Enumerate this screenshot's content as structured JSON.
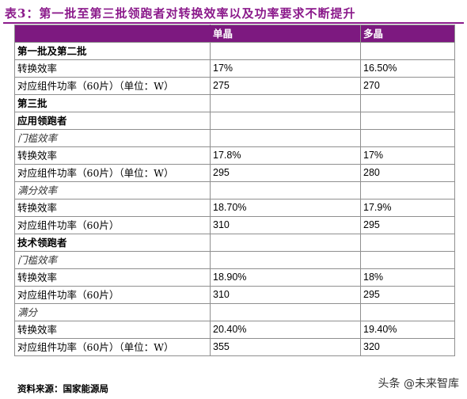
{
  "title": "表3：第一批至第三批领跑者对转换效率以及功率要求不断提升",
  "table": {
    "header": [
      "",
      "单晶",
      "多晶"
    ],
    "rows": [
      {
        "label": "第一批及第二批",
        "v1": "",
        "v2": "",
        "style": "bold"
      },
      {
        "label": "转换效率",
        "v1": "17%",
        "v2": "16.50%",
        "style": "normal"
      },
      {
        "label": "对应组件功率（60片）（单位：W）",
        "v1": "275",
        "v2": "270",
        "style": "normal"
      },
      {
        "label": "第三批",
        "v1": "",
        "v2": "",
        "style": "bold"
      },
      {
        "label": "应用领跑者",
        "v1": "",
        "v2": "",
        "style": "bold"
      },
      {
        "label": "门槛效率",
        "v1": "",
        "v2": "",
        "style": "italic"
      },
      {
        "label": "转换效率",
        "v1": "17.8%",
        "v2": "17%",
        "style": "normal"
      },
      {
        "label": "对应组件功率（60片）（单位：W）",
        "v1": "295",
        "v2": "280",
        "style": "normal"
      },
      {
        "label": "满分效率",
        "v1": "",
        "v2": "",
        "style": "italic"
      },
      {
        "label": "转换效率",
        "v1": "18.70%",
        "v2": "17.9%",
        "style": "normal"
      },
      {
        "label": "对应组件功率（60片）",
        "v1": "310",
        "v2": "295",
        "style": "normal"
      },
      {
        "label": "技术领跑者",
        "v1": "",
        "v2": "",
        "style": "bold"
      },
      {
        "label": "门槛效率",
        "v1": "",
        "v2": "",
        "style": "italic"
      },
      {
        "label": "转换效率",
        "v1": "18.90%",
        "v2": "18%",
        "style": "normal"
      },
      {
        "label": "对应组件功率（60片）",
        "v1": "310",
        "v2": "295",
        "style": "normal"
      },
      {
        "label": "满分",
        "v1": "",
        "v2": "",
        "style": "italic"
      },
      {
        "label": "转换效率",
        "v1": "20.40%",
        "v2": "19.40%",
        "style": "normal"
      },
      {
        "label": "对应组件功率（60片）（单位：W）",
        "v1": "355",
        "v2": "320",
        "style": "normal"
      }
    ]
  },
  "source": "资料来源：国家能源局",
  "watermark": "头条 @未来智库"
}
